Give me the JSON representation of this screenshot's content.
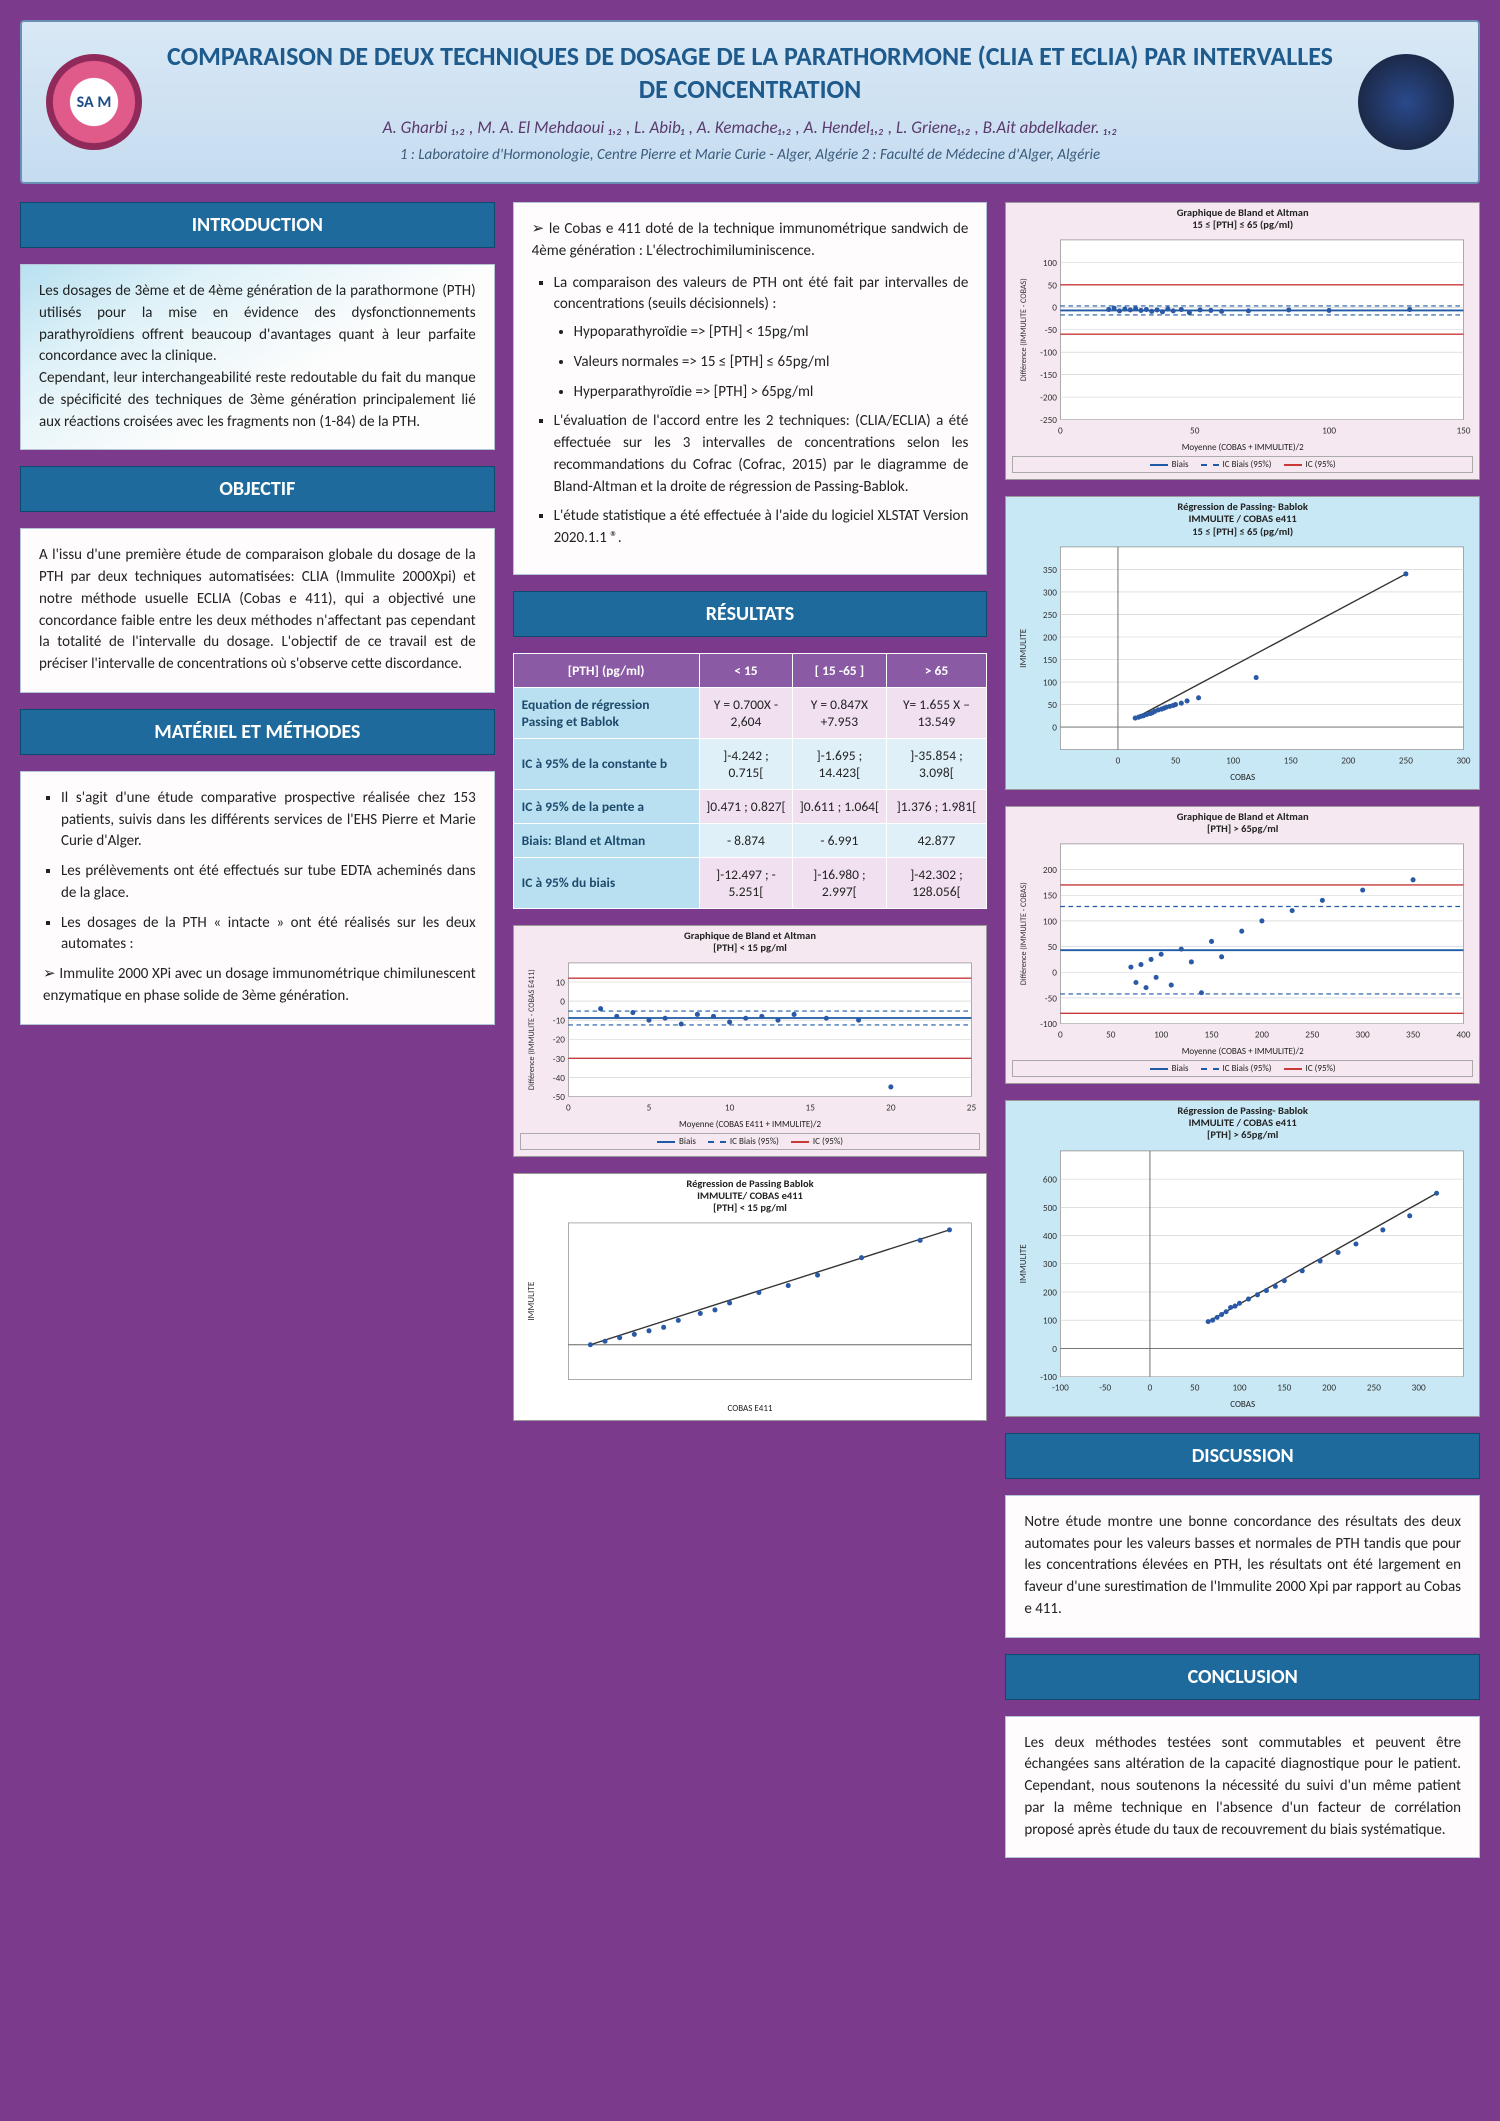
{
  "colors": {
    "poster_bg": "#7b3a8c",
    "header_bg_top": "#d9e8f5",
    "header_border": "#6a8fb5",
    "title_color": "#1e5a8c",
    "section_head_bg": "#1e6a9c",
    "table_head_bg": "#8a5aa5",
    "table_row_label_bg": "#b8e0f0",
    "chart_bias_line": "#1e5aa5",
    "chart_ic_bias_line": "#1e5aa5",
    "chart_ic_line": "#c83a3a",
    "scatter_point": "#2a5aa5",
    "grid": "#cccccc"
  },
  "header": {
    "title": "COMPARAISON DE DEUX TECHNIQUES DE DOSAGE DE LA PARATHORMONE (CLIA ET ECLIA) PAR INTERVALLES DE CONCENTRATION",
    "authors": "A. Gharbi ₁,₂ ,  M. A. El Mehdaoui ₁,₂ , L. Abib₁ , A. Kemache₁,₂ ,  A. Hendel₁,₂ ,  L. Griene₁,₂ ,  B.Ait abdelkader. ₁,₂",
    "affiliations": "1 : Laboratoire  d'Hormonologie, Centre Pierre et Marie Curie - Alger, Algérie    2 : Faculté de Médecine d'Alger, Algérie",
    "logo_text": "SA M"
  },
  "sections": {
    "intro_head": "INTRODUCTION",
    "intro_body": "Les dosages de 3ème et de 4ème génération de la parathormone (PTH) utilisés pour la mise en évidence des dysfonctionnements parathyroïdiens offrent beaucoup d'avantages quant à leur parfaite concordance avec la clinique.\nCependant, leur interchangeabilité reste redoutable du fait du manque de spécificité des techniques de 3ème génération principalement lié aux réactions croisées avec les fragments non (1-84) de la PTH.",
    "obj_head": "OBJECTIF",
    "obj_body": "A l'issu d'une première étude de comparaison globale du dosage de la PTH par deux techniques automatisées: CLIA (Immulite 2000Xpi) et notre méthode usuelle ECLIA (Cobas  e 411), qui a objectivé une concordance faible  entre les deux méthodes n'affectant pas cependant la totalité de l'intervalle du dosage. L'objectif de ce travail est de préciser l'intervalle de concentrations où s'observe cette discordance.",
    "mm_head": "MATÉRIEL ET MÉTHODES",
    "mm_b1": "Il s'agit d'une étude comparative prospective réalisée chez 153 patients, suivis dans les différents services de l'EHS Pierre et Marie Curie d'Alger.",
    "mm_b2": "Les prélèvements ont été effectués sur tube EDTA acheminés dans de la glace.",
    "mm_b3": "Les dosages de la PTH « intacte » ont été réalisés sur les deux automates :",
    "mm_b3a": "Immulite 2000 XPi avec un dosage immunométrique chimilunescent enzymatique en phase solide de 3ème génération.",
    "mm_top2_a": "le Cobas e 411 doté de la technique immunométrique sandwich de 4ème génération : L'électrochimiluminiscence.",
    "mm_top2_b": "La comparaison des valeurs de PTH ont été fait par intervalles de concentrations (seuils décisionnels) :",
    "mm_top2_b1": "Hypoparathyroïdie  => [PTH] < 15pg/ml",
    "mm_top2_b2": "Valeurs normales   => 15 ≤ [PTH] ≤ 65pg/ml",
    "mm_top2_b3": "Hyperparathyroïdie => [PTH] > 65pg/ml",
    "mm_top2_c": "L'évaluation de l'accord entre les 2 techniques: (CLIA/ECLIA) a été effectuée sur les 3 intervalles de concentrations selon les recommandations du Cofrac (Cofrac, 2015) par  le diagramme de Bland-Altman et la droite de régression de Passing-Bablok.",
    "mm_top2_d": "L'étude statistique a été effectuée à l'aide du logiciel XLSTAT Version 2020.1.1 ®.",
    "res_head": "RÉSULTATS",
    "disc_head": "DISCUSSION",
    "disc_body": "Notre étude montre une bonne concordance des résultats des deux automates pour les valeurs basses et normales de PTH tandis que pour les concentrations élevées en PTH, les résultats ont été largement en faveur d'une surestimation de l'Immulite 2000 Xpi par rapport au Cobas e 411.",
    "conc_head": "CONCLUSION",
    "conc_body": "Les deux méthodes testées sont commutables et peuvent être échangées sans altération de la capacité diagnostique pour le patient. Cependant, nous soutenons la nécessité du suivi d'un même patient par la même technique en l'absence d'un facteur de corrélation proposé après étude du taux de recouvrement du biais systématique."
  },
  "results_table": {
    "header_row": [
      "[PTH] (pg/ml)",
      "< 15",
      "[ 15 -65 ]",
      "> 65"
    ],
    "rows": [
      {
        "label": "Equation de régression Passing et Bablok",
        "cells": [
          "Y = 0.700X - 2,604",
          "Y = 0.847X +7.953",
          "Y= 1.655 X – 13.549"
        ]
      },
      {
        "label": "IC à 95% de la constante b",
        "cells": [
          "]-4.242 ; 0.715[",
          "]-1.695 ; 14.423[",
          "]-35.854 ; 3.098["
        ]
      },
      {
        "label": "IC à 95% de la pente a",
        "cells": [
          "]0.471 ; 0.827[",
          "]0.611 ; 1.064[",
          "]1.376 ; 1.981["
        ]
      },
      {
        "label": "Biais: Bland et Altman",
        "cells": [
          "- 8.874",
          "- 6.991",
          "42.877"
        ]
      },
      {
        "label": "IC à 95%  du biais",
        "cells": [
          "]-12.497 ; - 5.251[",
          "]-16.980 ; 2.997[",
          "]-42.302 ; 128.056["
        ]
      }
    ]
  },
  "charts": {
    "ba_lt15": {
      "title1": "Graphique de Bland et Altman",
      "title2": "[PTH] < 15 pg/ml",
      "xlabel": "Moyenne (COBAS  E411 + IMMULITE)/2",
      "ylabel": "Différence (IMMULITE - COBAS E411)",
      "xlim": [
        0,
        25
      ],
      "xticks": [
        0,
        5,
        10,
        15,
        20,
        25
      ],
      "ylim": [
        -50,
        20
      ],
      "yticks": [
        -50,
        -40,
        -30,
        -20,
        -10,
        0,
        10
      ],
      "bias": -8.874,
      "ic_bias": [
        -12.497,
        -5.251
      ],
      "ic95": [
        -30,
        12
      ],
      "points": [
        [
          2,
          -4
        ],
        [
          3,
          -8
        ],
        [
          4,
          -6
        ],
        [
          5,
          -10
        ],
        [
          6,
          -9
        ],
        [
          7,
          -12
        ],
        [
          8,
          -7
        ],
        [
          9,
          -8
        ],
        [
          10,
          -11
        ],
        [
          11,
          -9
        ],
        [
          12,
          -8
        ],
        [
          13,
          -10
        ],
        [
          14,
          -7
        ],
        [
          16,
          -9
        ],
        [
          18,
          -10
        ],
        [
          20,
          -45
        ]
      ]
    },
    "pb_lt15": {
      "title1": "Régression de Passing Bablok",
      "title2": "IMMULITE/ COBAS  e411",
      "title3": "[PTH] < 15 pg/ml",
      "xlabel": "COBAS  E411",
      "ylabel": "IMMULITE",
      "xlim": [
        0,
        55
      ],
      "ylim": [
        -10,
        35
      ],
      "points": [
        [
          3,
          0
        ],
        [
          5,
          1
        ],
        [
          7,
          2
        ],
        [
          9,
          3
        ],
        [
          11,
          4
        ],
        [
          13,
          5
        ],
        [
          15,
          7
        ],
        [
          18,
          9
        ],
        [
          20,
          10
        ],
        [
          22,
          12
        ],
        [
          26,
          15
        ],
        [
          30,
          17
        ],
        [
          34,
          20
        ],
        [
          40,
          25
        ],
        [
          48,
          30
        ],
        [
          52,
          33
        ]
      ]
    },
    "ba_15_65": {
      "title1": "Graphique de Bland et Altman",
      "title2": "15 ≤ [PTH] ≤ 65 (pg/ml)",
      "xlabel": "Moyenne (COBAS + IMMULITE)/2",
      "ylabel": "Différence (IMMULITE - COBAS)",
      "xlim": [
        0,
        150
      ],
      "xticks": [
        0,
        50,
        100,
        150
      ],
      "ylim": [
        -250,
        150
      ],
      "yticks": [
        -250,
        -200,
        -150,
        -100,
        -50,
        0,
        50,
        100
      ],
      "bias": -6.991,
      "ic_bias": [
        -16.98,
        2.997
      ],
      "ic95": [
        -60,
        50
      ],
      "points": [
        [
          18,
          -5
        ],
        [
          20,
          -2
        ],
        [
          22,
          -8
        ],
        [
          24,
          -4
        ],
        [
          26,
          -6
        ],
        [
          28,
          -3
        ],
        [
          30,
          -7
        ],
        [
          32,
          -5
        ],
        [
          34,
          -9
        ],
        [
          36,
          -6
        ],
        [
          38,
          -10
        ],
        [
          40,
          -4
        ],
        [
          42,
          -8
        ],
        [
          45,
          -5
        ],
        [
          48,
          -12
        ],
        [
          52,
          -6
        ],
        [
          56,
          -7
        ],
        [
          60,
          -9
        ],
        [
          70,
          -8
        ],
        [
          85,
          -6
        ],
        [
          100,
          -7
        ],
        [
          130,
          -5
        ]
      ]
    },
    "pb_15_65": {
      "title1": "Régression de Passing- Bablok",
      "title2": "IMMULITE / COBAS e411",
      "title3": "15 ≤ [PTH] ≤ 65 (pg/ml)",
      "xlabel": "COBAS",
      "ylabel": "IMMULITE",
      "xlim": [
        -50,
        300
      ],
      "ylim": [
        -50,
        400
      ],
      "xticks": [
        0,
        50,
        100,
        150,
        200,
        250,
        300
      ],
      "yticks": [
        0,
        50,
        100,
        150,
        200,
        250,
        300,
        350
      ],
      "points": [
        [
          15,
          20
        ],
        [
          18,
          22
        ],
        [
          20,
          24
        ],
        [
          22,
          25
        ],
        [
          25,
          28
        ],
        [
          28,
          30
        ],
        [
          30,
          32
        ],
        [
          32,
          35
        ],
        [
          35,
          38
        ],
        [
          38,
          40
        ],
        [
          40,
          42
        ],
        [
          42,
          44
        ],
        [
          45,
          46
        ],
        [
          48,
          48
        ],
        [
          50,
          50
        ],
        [
          55,
          53
        ],
        [
          60,
          58
        ],
        [
          70,
          65
        ],
        [
          120,
          110
        ],
        [
          250,
          340
        ]
      ]
    },
    "ba_gt65": {
      "title1": "Graphique de Bland et Altman",
      "title2": "[PTH] > 65pg/ml",
      "xlabel": "Moyenne (COBAS + IMMULITE)/2",
      "ylabel": "Différence (IMMULITE - COBAS)",
      "xlim": [
        0,
        400
      ],
      "xticks": [
        0,
        50,
        100,
        150,
        200,
        250,
        300,
        350,
        400
      ],
      "ylim": [
        -100,
        250
      ],
      "yticks": [
        -100,
        -50,
        0,
        50,
        100,
        150,
        200
      ],
      "bias": 42.877,
      "ic_bias": [
        -42.302,
        128.056
      ],
      "ic95": [
        -80,
        170
      ],
      "points": [
        [
          70,
          10
        ],
        [
          75,
          -20
        ],
        [
          80,
          15
        ],
        [
          85,
          -30
        ],
        [
          90,
          25
        ],
        [
          95,
          -10
        ],
        [
          100,
          35
        ],
        [
          110,
          -25
        ],
        [
          120,
          45
        ],
        [
          130,
          20
        ],
        [
          140,
          -40
        ],
        [
          150,
          60
        ],
        [
          160,
          30
        ],
        [
          180,
          80
        ],
        [
          200,
          100
        ],
        [
          230,
          120
        ],
        [
          260,
          140
        ],
        [
          300,
          160
        ],
        [
          350,
          180
        ]
      ]
    },
    "pb_gt65": {
      "title1": "Régression de Passing- Bablok",
      "title2": "IMMULITE / COBAS e411",
      "title3": "[PTH] > 65pg/ml",
      "xlabel": "COBAS",
      "ylabel": "IMMULITE",
      "xlim": [
        -100,
        350
      ],
      "ylim": [
        -100,
        700
      ],
      "xticks": [
        -100,
        -50,
        0,
        50,
        100,
        150,
        200,
        250,
        300
      ],
      "yticks": [
        -100,
        0,
        100,
        200,
        300,
        400,
        500,
        600
      ],
      "points": [
        [
          65,
          95
        ],
        [
          70,
          100
        ],
        [
          75,
          110
        ],
        [
          80,
          120
        ],
        [
          85,
          130
        ],
        [
          90,
          145
        ],
        [
          95,
          150
        ],
        [
          100,
          160
        ],
        [
          110,
          175
        ],
        [
          120,
          190
        ],
        [
          130,
          205
        ],
        [
          140,
          220
        ],
        [
          150,
          240
        ],
        [
          170,
          275
        ],
        [
          190,
          310
        ],
        [
          210,
          340
        ],
        [
          230,
          370
        ],
        [
          260,
          420
        ],
        [
          290,
          470
        ],
        [
          320,
          550
        ]
      ]
    },
    "legend": {
      "bias": "Biais",
      "ic_bias": "IC Biais (95%)",
      "ic": "IC (95%)"
    }
  }
}
